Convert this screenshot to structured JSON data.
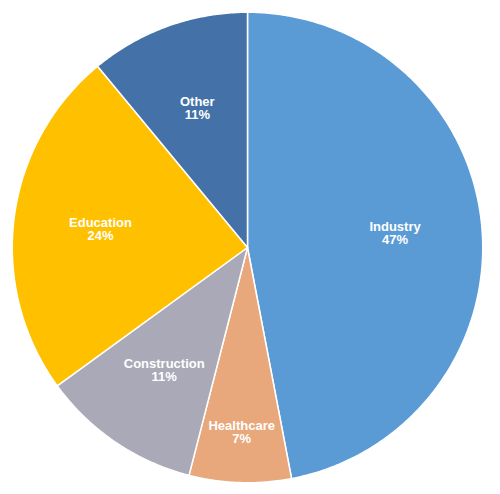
{
  "chart_data": {
    "type": "pie",
    "categories": [
      "Industry",
      "Healthcare",
      "Construction",
      "Education",
      "Other"
    ],
    "values": [
      47,
      7,
      11,
      24,
      11
    ],
    "value_labels": [
      "47%",
      "7%",
      "11%",
      "24%",
      "11%"
    ],
    "colors": [
      "#5B9BD5",
      "#E8A87C",
      "#A9A9B8",
      "#FFC000",
      "#4472A8"
    ],
    "data_labels": true
  }
}
